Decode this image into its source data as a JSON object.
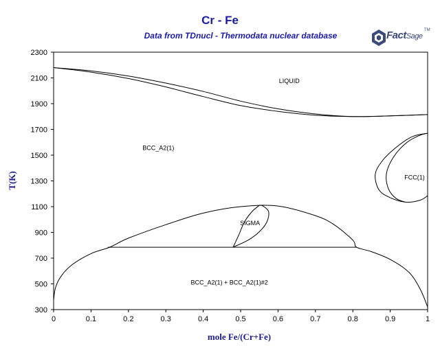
{
  "chart_data": {
    "type": "phase_diagram",
    "title": "Cr - Fe",
    "subtitle": "Data from TDnucl - Thermodata nuclear database",
    "logo": {
      "word1": "Fact",
      "word2": "Sage",
      "tm": "TM"
    },
    "xlabel": "mole Fe/(Cr+Fe)",
    "ylabel": "T(K)",
    "xlim": [
      0,
      1
    ],
    "ylim": [
      300,
      2300
    ],
    "xticks": [
      0,
      0.1,
      0.2,
      0.3,
      0.4,
      0.5,
      0.6,
      0.7,
      0.8,
      0.9,
      1
    ],
    "yticks": [
      300,
      500,
      700,
      900,
      1100,
      1300,
      1500,
      1700,
      1900,
      2100,
      2300
    ],
    "xtick_labels": [
      "0",
      "0.1",
      "0.2",
      "0.3",
      "0.4",
      "0.5",
      "0.6",
      "0.7",
      "0.8",
      "0.9",
      "1"
    ],
    "ytick_labels": [
      "300",
      "500",
      "700",
      "900",
      "1100",
      "1300",
      "1500",
      "1700",
      "1900",
      "2100",
      "2300"
    ],
    "regions": [
      {
        "label": "LIQUID",
        "x": 0.63,
        "y": 2060
      },
      {
        "label": "BCC_A2(1)",
        "x": 0.28,
        "y": 1540
      },
      {
        "label": "FCC(1)",
        "x": 0.965,
        "y": 1310
      },
      {
        "label": "SIGMA",
        "x": 0.525,
        "y": 955
      },
      {
        "label": "BCC_A2(1) + BCC_A2(1)#2",
        "x": 0.47,
        "y": 495
      }
    ],
    "series": [
      {
        "id": "liquidus",
        "points": [
          [
            0,
            2180
          ],
          [
            0.1,
            2155
          ],
          [
            0.2,
            2115
          ],
          [
            0.3,
            2060
          ],
          [
            0.4,
            1995
          ],
          [
            0.5,
            1920
          ],
          [
            0.6,
            1860
          ],
          [
            0.7,
            1820
          ],
          [
            0.8,
            1800
          ],
          [
            0.9,
            1805
          ],
          [
            1,
            1815
          ]
        ]
      },
      {
        "id": "solidus",
        "points": [
          [
            0,
            2180
          ],
          [
            0.1,
            2145
          ],
          [
            0.2,
            2095
          ],
          [
            0.3,
            2030
          ],
          [
            0.4,
            1955
          ],
          [
            0.5,
            1885
          ],
          [
            0.6,
            1840
          ],
          [
            0.7,
            1810
          ],
          [
            0.8,
            1800
          ],
          [
            0.9,
            1805
          ],
          [
            1,
            1815
          ]
        ]
      },
      {
        "id": "gamma-loop-outer",
        "points": [
          [
            1,
            1670
          ],
          [
            0.96,
            1645
          ],
          [
            0.92,
            1570
          ],
          [
            0.88,
            1460
          ],
          [
            0.86,
            1350
          ],
          [
            0.87,
            1230
          ],
          [
            0.9,
            1170
          ],
          [
            0.94,
            1135
          ],
          [
            0.98,
            1150
          ],
          [
            1,
            1185
          ]
        ]
      },
      {
        "id": "gamma-loop-inner",
        "points": [
          [
            1,
            1670
          ],
          [
            0.98,
            1655
          ],
          [
            0.945,
            1600
          ],
          [
            0.91,
            1490
          ],
          [
            0.89,
            1360
          ],
          [
            0.895,
            1240
          ],
          [
            0.915,
            1165
          ],
          [
            0.94,
            1135
          ]
        ]
      },
      {
        "id": "sigma-left",
        "points": [
          [
            0.48,
            785
          ],
          [
            0.495,
            880
          ],
          [
            0.51,
            980
          ],
          [
            0.53,
            1060
          ],
          [
            0.55,
            1110
          ]
        ]
      },
      {
        "id": "sigma-right",
        "points": [
          [
            0.48,
            785
          ],
          [
            0.52,
            840
          ],
          [
            0.55,
            905
          ],
          [
            0.57,
            980
          ],
          [
            0.575,
            1060
          ],
          [
            0.56,
            1105
          ],
          [
            0.55,
            1110
          ]
        ]
      },
      {
        "id": "miscibility-gap",
        "points": [
          [
            0,
            375
          ],
          [
            0.005,
            470
          ],
          [
            0.02,
            560
          ],
          [
            0.05,
            650
          ],
          [
            0.1,
            735
          ],
          [
            0.15,
            785
          ],
          [
            0.2,
            855
          ],
          [
            0.3,
            960
          ],
          [
            0.4,
            1050
          ],
          [
            0.5,
            1100
          ],
          [
            0.6,
            1105
          ],
          [
            0.7,
            1030
          ],
          [
            0.75,
            960
          ],
          [
            0.8,
            840
          ],
          [
            0.81,
            785
          ],
          [
            0.85,
            750
          ],
          [
            0.9,
            690
          ],
          [
            0.95,
            590
          ],
          [
            0.98,
            460
          ],
          [
            1,
            320
          ]
        ]
      },
      {
        "id": "eutectoid-line",
        "points": [
          [
            0.145,
            785
          ],
          [
            0.81,
            785
          ]
        ]
      }
    ]
  }
}
